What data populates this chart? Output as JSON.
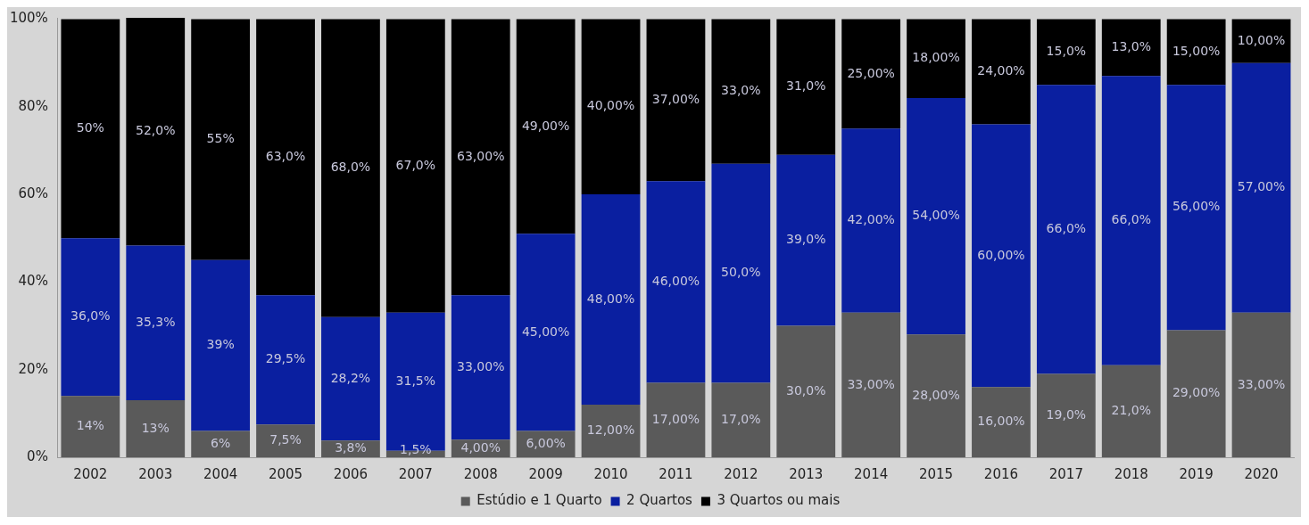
{
  "chart_data": {
    "type": "bar",
    "stacked": true,
    "categories": [
      "2002",
      "2003",
      "2004",
      "2005",
      "2006",
      "2007",
      "2008",
      "2009",
      "2010",
      "2011",
      "2012",
      "2013",
      "2014",
      "2015",
      "2016",
      "2017",
      "2018",
      "2019",
      "2020"
    ],
    "ylim": [
      0,
      100.3
    ],
    "yticks": [
      {
        "value": 0,
        "label": "0%"
      },
      {
        "value": 20,
        "label": "20%"
      },
      {
        "value": 40,
        "label": "40%"
      },
      {
        "value": 60,
        "label": "60%"
      },
      {
        "value": 80,
        "label": "80%"
      },
      {
        "value": 100,
        "label": "100%"
      }
    ],
    "grid": false,
    "legend": "bottom",
    "series": [
      {
        "name": "Estúdio e 1 Quarto",
        "color": "#5a5a5a",
        "values": [
          14,
          13,
          6,
          7.5,
          3.8,
          1.5,
          4,
          6,
          12,
          17,
          17,
          30,
          33,
          28,
          16,
          19,
          21,
          29,
          33
        ],
        "value_labels": [
          "14%",
          "13%",
          "6%",
          "7,5%",
          "3,8%",
          "1,5%",
          "4,00%",
          "6,00%",
          "12,00%",
          "17,00%",
          "17,0%",
          "30,0%",
          "33,00%",
          "28,00%",
          "16,00%",
          "19,0%",
          "21,0%",
          "29,00%",
          "33,00%"
        ]
      },
      {
        "name": "2 Quartos",
        "color": "#0a1fa0",
        "values": [
          36,
          35.3,
          39,
          29.5,
          28.2,
          31.5,
          33,
          45,
          48,
          46,
          50,
          39,
          42,
          54,
          60,
          66,
          66,
          56,
          57
        ],
        "value_labels": [
          "36,0%",
          "35,3%",
          "39%",
          "29,5%",
          "28,2%",
          "31,5%",
          "33,00%",
          "45,00%",
          "48,00%",
          "46,00%",
          "50,0%",
          "39,0%",
          "42,00%",
          "54,00%",
          "60,00%",
          "66,0%",
          "66,0%",
          "56,00%",
          "57,00%"
        ]
      },
      {
        "name": "3 Quartos ou mais",
        "color": "#000000",
        "values": [
          50,
          52,
          55,
          63,
          68,
          67,
          63,
          49,
          40,
          37,
          33,
          31,
          25,
          18,
          24,
          15,
          13,
          15,
          10
        ],
        "value_labels": [
          "50%",
          "52,0%",
          "55%",
          "63,0%",
          "68,0%",
          "67,0%",
          "63,00%",
          "49,00%",
          "40,00%",
          "37,00%",
          "33,0%",
          "31,0%",
          "25,00%",
          "18,00%",
          "24,00%",
          "15,0%",
          "13,0%",
          "15,00%",
          "10,00%"
        ]
      }
    ]
  }
}
